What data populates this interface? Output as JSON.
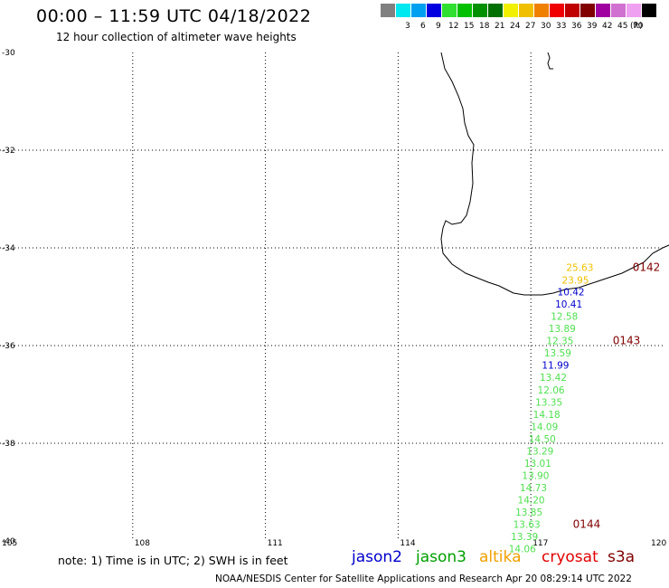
{
  "header": {
    "title": "00:00 – 11:59 UTC 04/18/2022",
    "subtitle": "12 hour collection of altimeter wave heights"
  },
  "color_scale": {
    "unit": "(ft)",
    "swatches": [
      {
        "color": "#808080",
        "label": ""
      },
      {
        "color": "#00e8f0",
        "label": "3"
      },
      {
        "color": "#00a0f0",
        "label": "6"
      },
      {
        "color": "#0000e0",
        "label": "9"
      },
      {
        "color": "#30e030",
        "label": "12"
      },
      {
        "color": "#00c000",
        "label": "15"
      },
      {
        "color": "#009000",
        "label": "18"
      },
      {
        "color": "#007000",
        "label": "21"
      },
      {
        "color": "#f0f000",
        "label": "24"
      },
      {
        "color": "#f0c000",
        "label": "27"
      },
      {
        "color": "#f08000",
        "label": "30"
      },
      {
        "color": "#f00000",
        "label": "33"
      },
      {
        "color": "#c00000",
        "label": "36"
      },
      {
        "color": "#800000",
        "label": "39"
      },
      {
        "color": "#a000a0",
        "label": "42"
      },
      {
        "color": "#d070d0",
        "label": "45"
      },
      {
        "color": "#f0a0f0",
        "label": "70"
      },
      {
        "color": "#000000",
        "label": ""
      }
    ]
  },
  "axes": {
    "lat_labels": [
      "-30",
      "-32",
      "-34",
      "-36",
      "-38",
      "-40"
    ],
    "lon_labels": [
      "105",
      "108",
      "111",
      "114",
      "117",
      "120"
    ]
  },
  "observations": [
    {
      "lon": 117.8,
      "lat": -34.47,
      "value": "25.63",
      "color": "#f0c000"
    },
    {
      "lon": 117.7,
      "lat": -34.73,
      "value": "23.95",
      "color": "#f0c000"
    },
    {
      "lon": 117.6,
      "lat": -34.97,
      "value": "10.42",
      "color": "#0000cc"
    },
    {
      "lon": 117.55,
      "lat": -35.22,
      "value": "10.41",
      "color": "#0000cc"
    },
    {
      "lon": 117.45,
      "lat": -35.47,
      "value": "12.58",
      "color": "#50e050"
    },
    {
      "lon": 117.4,
      "lat": -35.72,
      "value": "13.89",
      "color": "#50e050"
    },
    {
      "lon": 117.35,
      "lat": -35.97,
      "value": "12.35",
      "color": "#50e050"
    },
    {
      "lon": 117.3,
      "lat": -36.22,
      "value": "13.59",
      "color": "#50e050"
    },
    {
      "lon": 117.25,
      "lat": -36.47,
      "value": "11.99",
      "color": "#0000cc"
    },
    {
      "lon": 117.2,
      "lat": -36.72,
      "value": "13.42",
      "color": "#50e050"
    },
    {
      "lon": 117.15,
      "lat": -36.98,
      "value": "12.06",
      "color": "#50e050"
    },
    {
      "lon": 117.1,
      "lat": -37.23,
      "value": "13.35",
      "color": "#50e050"
    },
    {
      "lon": 117.05,
      "lat": -37.48,
      "value": "14.18",
      "color": "#50e050"
    },
    {
      "lon": 117.0,
      "lat": -37.73,
      "value": "14.09",
      "color": "#50e050"
    },
    {
      "lon": 116.95,
      "lat": -37.98,
      "value": "14.50",
      "color": "#50e050"
    },
    {
      "lon": 116.9,
      "lat": -38.23,
      "value": "13.29",
      "color": "#50e050"
    },
    {
      "lon": 116.85,
      "lat": -38.48,
      "value": "13.01",
      "color": "#50e050"
    },
    {
      "lon": 116.8,
      "lat": -38.73,
      "value": "13.90",
      "color": "#50e050"
    },
    {
      "lon": 116.75,
      "lat": -38.98,
      "value": "14.73",
      "color": "#50e050"
    },
    {
      "lon": 116.7,
      "lat": -39.23,
      "value": "14.20",
      "color": "#50e050"
    },
    {
      "lon": 116.65,
      "lat": -39.48,
      "value": "13.85",
      "color": "#50e050"
    },
    {
      "lon": 116.6,
      "lat": -39.73,
      "value": "13.63",
      "color": "#50e050"
    },
    {
      "lon": 116.55,
      "lat": -39.98,
      "value": "13.39",
      "color": "#50e050"
    },
    {
      "lon": 116.5,
      "lat": -40.23,
      "value": "14.06",
      "color": "#50e050"
    }
  ],
  "time_marks": [
    {
      "lon": 119.3,
      "lat": -34.47,
      "text": "0142",
      "color": "#800000"
    },
    {
      "lon": 118.85,
      "lat": -35.97,
      "text": "0143",
      "color": "#800000"
    },
    {
      "lon": 117.95,
      "lat": -39.73,
      "text": "0144",
      "color": "#800000"
    }
  ],
  "note": "note:  1) Time is in UTC;  2) SWH is in feet",
  "satellite_legend": [
    {
      "name": "jason2",
      "color": "#0000cc"
    },
    {
      "name": "jason3",
      "color": "#00a000"
    },
    {
      "name": "altika",
      "color": "#f0a000"
    },
    {
      "name": "cryosat",
      "color": "#e00000"
    },
    {
      "name": "s3a",
      "color": "#800000"
    }
  ],
  "footer": "NOAA/NESDIS Center for Satellite Applications and Research    Apr 20 08:29:14 UTC 2022"
}
